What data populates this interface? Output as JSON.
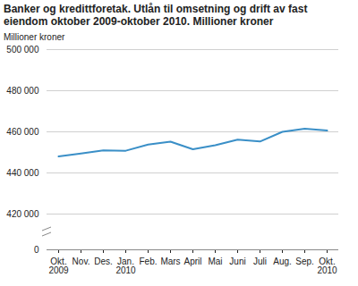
{
  "chart_data": {
    "type": "line",
    "title": "Banker og kredittforetak. Utlån til omsetning og drift av fast eiendom oktober 2009-oktober 2010. Millioner kroner",
    "y_label": "Millioner kroner",
    "categories": [
      "Okt.\n2009",
      "Nov.",
      "Des.",
      "Jan.\n2010",
      "Feb.",
      "Mars",
      "April",
      "Mai",
      "Juni",
      "Juli",
      "Aug.",
      "Sep.",
      "Okt.\n2010"
    ],
    "values": [
      448000,
      449500,
      451000,
      450800,
      453800,
      455200,
      451500,
      453500,
      456200,
      455300,
      460000,
      461500,
      460600
    ],
    "color": "#3a8fc7",
    "ylim": [
      0,
      500000
    ],
    "yticks": [
      0,
      {
        "value": 420000,
        "label": "420 000"
      },
      {
        "value": 440000,
        "label": "440 000"
      },
      {
        "value": 460000,
        "label": "460 000"
      },
      {
        "value": 480000,
        "label": "480 000"
      },
      {
        "value": 500000,
        "label": "500 000"
      }
    ],
    "grid": true
  }
}
